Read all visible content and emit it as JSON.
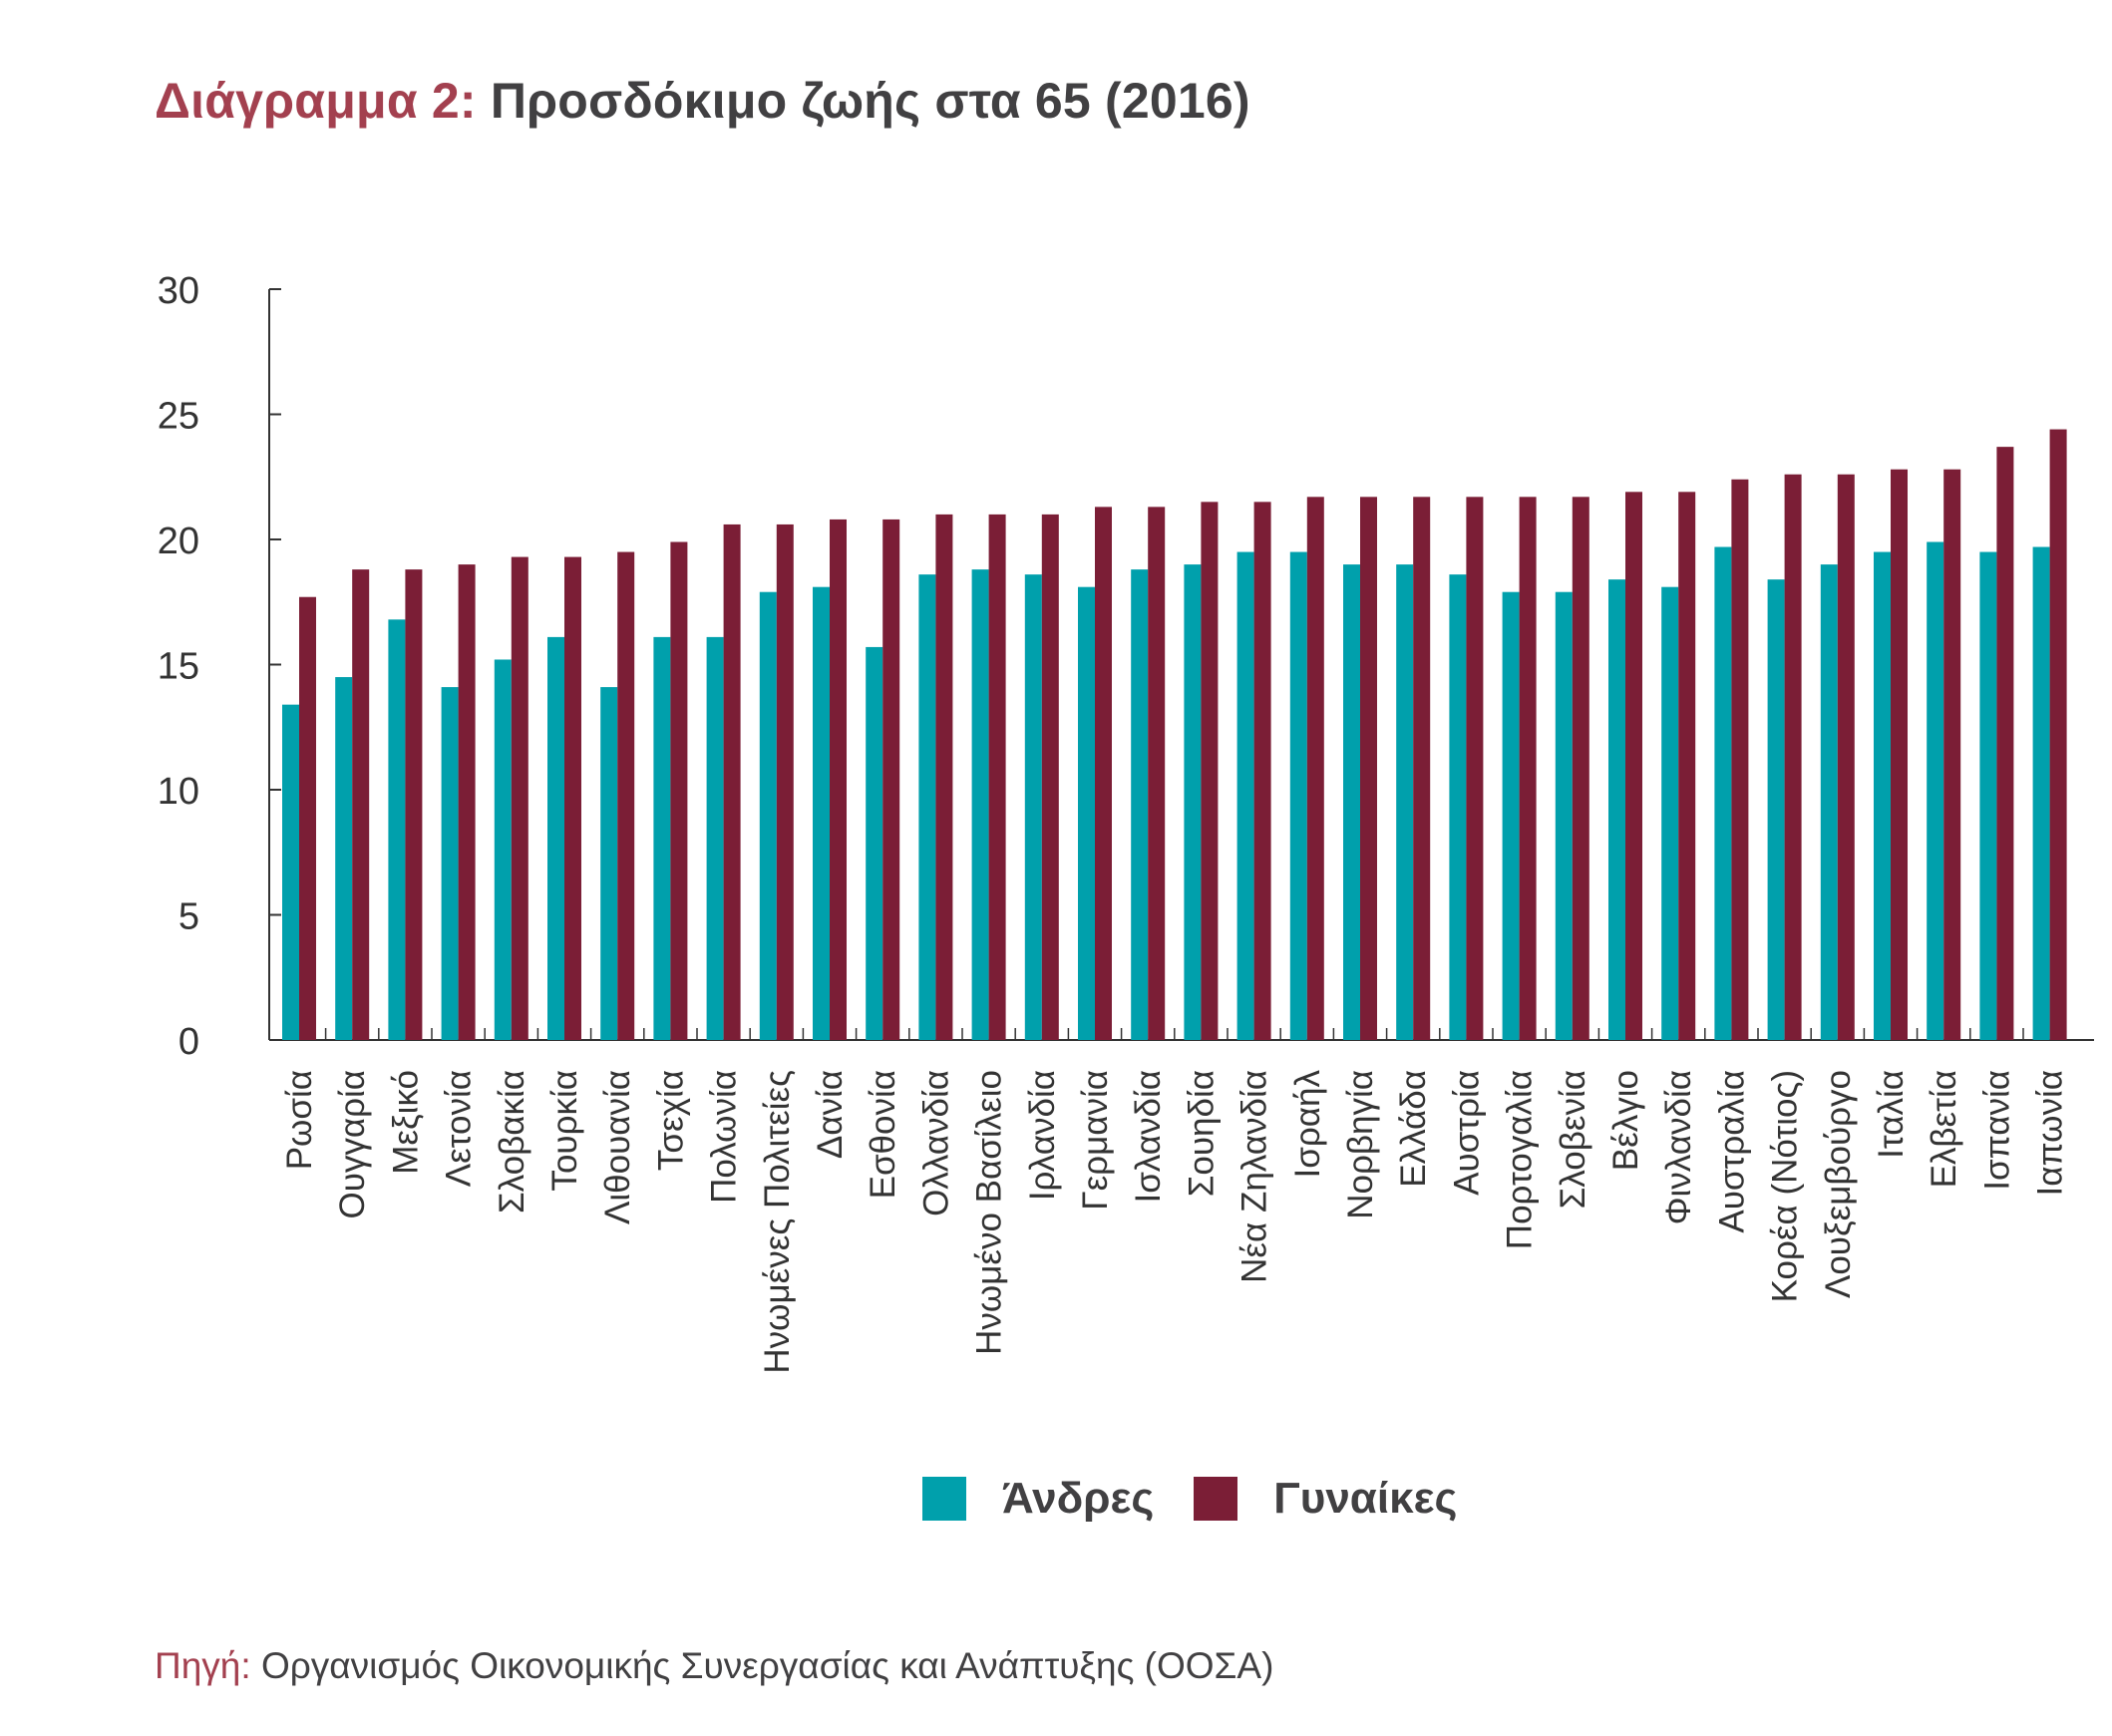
{
  "title": {
    "prefix": "Διάγραμμα 2:",
    "main": "Προσδόκιμο ζωής στα 65 (2016)"
  },
  "legend": {
    "men": "Άνδρες",
    "women": "Γυναίκες"
  },
  "source": {
    "prefix": "Πηγή:",
    "text": "Οργανισμός Οικονομικής Συνεργασίας και Ανάπτυξης (ΟΟΣΑ)"
  },
  "colors": {
    "men": "#00a0ac",
    "women": "#7b1e36",
    "axis": "#333333",
    "title_accent": "#a3404f"
  },
  "chart_data": {
    "type": "bar",
    "title": "Προσδόκιμο ζωής στα 65 (2016)",
    "xlabel": "",
    "ylabel": "",
    "ylim": [
      0,
      30
    ],
    "yticks": [
      0,
      5,
      10,
      15,
      20,
      25,
      30
    ],
    "grid": false,
    "legend_position": "bottom",
    "categories": [
      "Ρωσία",
      "Ουγγαρία",
      "Μεξικό",
      "Λετονία",
      "Σλοβακία",
      "Τουρκία",
      "Λιθουανία",
      "Τσεχία",
      "Πολωνία",
      "Ηνωμένες Πολιτείες",
      "Δανία",
      "Εσθονία",
      "Ολλανδία",
      "Ηνωμένο Βασίλειο",
      "Ιρλανδία",
      "Γερμανία",
      "Ισλανδία",
      "Σουηδία",
      "Νέα Ζηλανδία",
      "Ισραήλ",
      "Νορβηγία",
      "Ελλάδα",
      "Αυστρία",
      "Πορτογαλία",
      "Σλοβενία",
      "Βέλγιο",
      "Φινλανδία",
      "Αυστραλία",
      "Κορέα (Νότιος)",
      "Λουξεμβούργο",
      "Ιταλία",
      "Ελβετία",
      "Ισπανία",
      "Ιαπωνία"
    ],
    "series": [
      {
        "name": "Άνδρες",
        "values": [
          13.4,
          14.5,
          16.8,
          14.1,
          15.2,
          16.1,
          14.1,
          16.1,
          16.1,
          17.9,
          18.1,
          15.7,
          18.6,
          18.8,
          18.6,
          18.1,
          18.8,
          19.0,
          19.5,
          19.5,
          19.0,
          19.0,
          18.6,
          17.9,
          17.9,
          18.4,
          18.1,
          19.7,
          18.4,
          19.0,
          19.5,
          19.9,
          19.5,
          19.7
        ]
      },
      {
        "name": "Γυναίκες",
        "values": [
          17.7,
          18.8,
          18.8,
          19.0,
          19.3,
          19.3,
          19.5,
          19.9,
          20.6,
          20.6,
          20.8,
          20.8,
          21.0,
          21.0,
          21.0,
          21.3,
          21.3,
          21.5,
          21.5,
          21.7,
          21.7,
          21.7,
          21.7,
          21.7,
          21.7,
          21.9,
          21.9,
          22.4,
          22.6,
          22.6,
          22.8,
          22.8,
          23.7,
          24.4
        ]
      }
    ]
  }
}
